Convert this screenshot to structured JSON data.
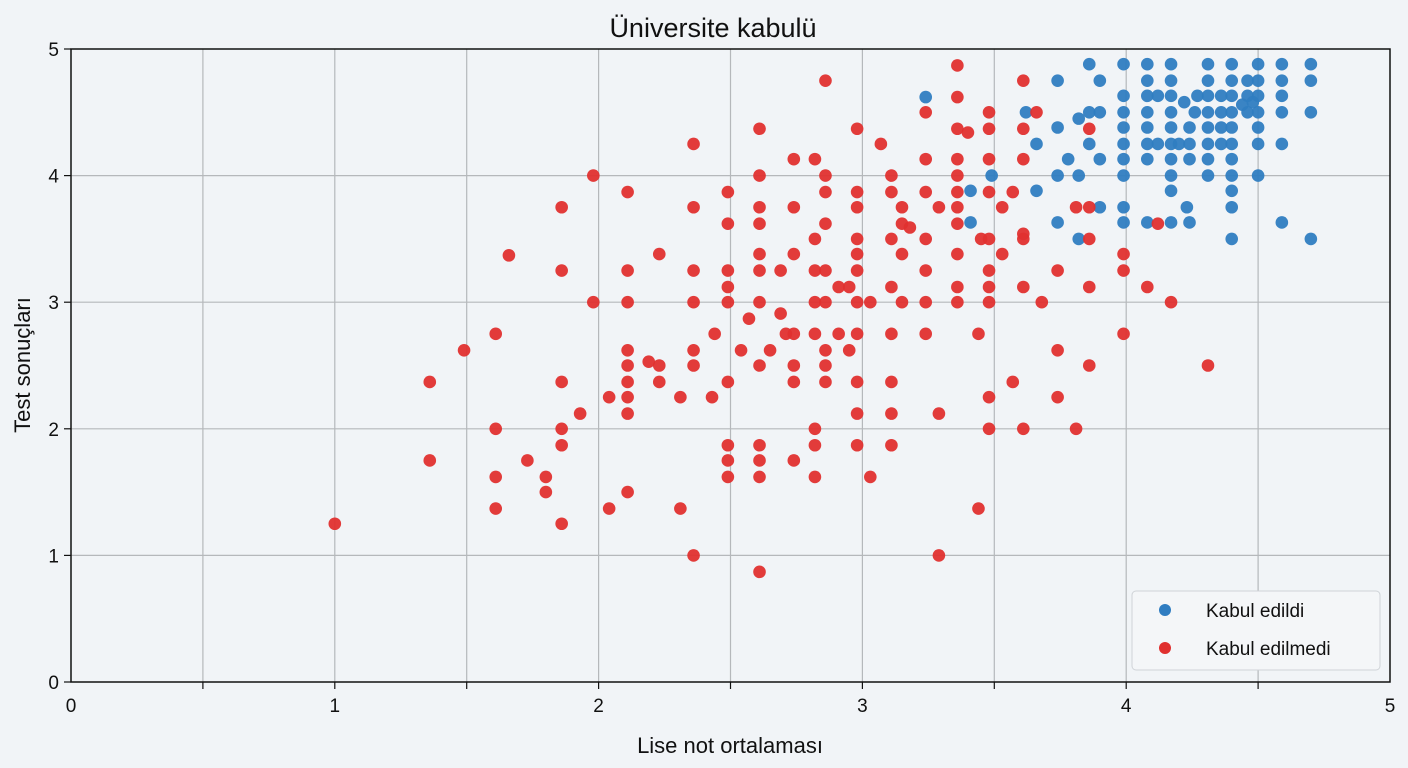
{
  "chart_data": {
    "type": "scatter",
    "title": "Üniversite kabulü",
    "xlabel": "Lise not ortalaması",
    "ylabel": "Test sonuçları",
    "xlim": [
      0,
      5
    ],
    "ylim": [
      0,
      5
    ],
    "xticks": [
      0,
      1,
      2,
      3,
      4,
      5
    ],
    "yticks": [
      0,
      1,
      2,
      3,
      4,
      5
    ],
    "grid": true,
    "legend_position": "bottom-right",
    "series": [
      {
        "name": "Kabul edildi",
        "color": "#2f7dc1",
        "points": [
          [
            3.24,
            4.62
          ],
          [
            3.41,
            3.88
          ],
          [
            3.41,
            3.63
          ],
          [
            3.49,
            4.0
          ],
          [
            3.62,
            4.5
          ],
          [
            3.66,
            4.25
          ],
          [
            3.66,
            3.88
          ],
          [
            3.74,
            4.75
          ],
          [
            3.74,
            4.38
          ],
          [
            3.74,
            4.0
          ],
          [
            3.74,
            3.63
          ],
          [
            3.78,
            4.13
          ],
          [
            3.82,
            4.45
          ],
          [
            3.82,
            4.0
          ],
          [
            3.82,
            3.5
          ],
          [
            3.86,
            4.88
          ],
          [
            3.86,
            4.5
          ],
          [
            3.86,
            4.25
          ],
          [
            3.9,
            4.75
          ],
          [
            3.9,
            4.5
          ],
          [
            3.9,
            4.13
          ],
          [
            3.9,
            3.75
          ],
          [
            3.99,
            4.88
          ],
          [
            3.99,
            4.63
          ],
          [
            3.99,
            4.5
          ],
          [
            3.99,
            4.38
          ],
          [
            3.99,
            4.25
          ],
          [
            3.99,
            4.13
          ],
          [
            3.99,
            4.0
          ],
          [
            3.99,
            3.75
          ],
          [
            3.99,
            3.63
          ],
          [
            4.08,
            4.88
          ],
          [
            4.08,
            4.75
          ],
          [
            4.08,
            4.63
          ],
          [
            4.08,
            4.5
          ],
          [
            4.08,
            4.38
          ],
          [
            4.08,
            4.25
          ],
          [
            4.08,
            4.13
          ],
          [
            4.08,
            3.63
          ],
          [
            4.12,
            4.63
          ],
          [
            4.12,
            4.25
          ],
          [
            4.17,
            4.88
          ],
          [
            4.17,
            4.75
          ],
          [
            4.17,
            4.63
          ],
          [
            4.17,
            4.5
          ],
          [
            4.17,
            4.38
          ],
          [
            4.17,
            4.25
          ],
          [
            4.17,
            4.13
          ],
          [
            4.17,
            4.0
          ],
          [
            4.17,
            3.88
          ],
          [
            4.17,
            3.63
          ],
          [
            4.2,
            4.25
          ],
          [
            4.22,
            4.58
          ],
          [
            4.23,
            3.75
          ],
          [
            4.24,
            4.38
          ],
          [
            4.24,
            4.25
          ],
          [
            4.24,
            4.13
          ],
          [
            4.24,
            3.63
          ],
          [
            4.26,
            4.5
          ],
          [
            4.27,
            4.63
          ],
          [
            4.31,
            4.88
          ],
          [
            4.31,
            4.75
          ],
          [
            4.31,
            4.63
          ],
          [
            4.31,
            4.5
          ],
          [
            4.31,
            4.38
          ],
          [
            4.31,
            4.25
          ],
          [
            4.31,
            4.13
          ],
          [
            4.31,
            4.0
          ],
          [
            4.36,
            4.63
          ],
          [
            4.36,
            4.5
          ],
          [
            4.36,
            4.38
          ],
          [
            4.36,
            4.25
          ],
          [
            4.4,
            4.88
          ],
          [
            4.4,
            4.75
          ],
          [
            4.4,
            4.63
          ],
          [
            4.4,
            4.5
          ],
          [
            4.4,
            4.38
          ],
          [
            4.4,
            4.25
          ],
          [
            4.4,
            4.13
          ],
          [
            4.4,
            4.0
          ],
          [
            4.4,
            3.88
          ],
          [
            4.4,
            3.75
          ],
          [
            4.4,
            3.5
          ],
          [
            4.46,
            4.75
          ],
          [
            4.46,
            4.63
          ],
          [
            4.46,
            4.5
          ],
          [
            4.44,
            4.56
          ],
          [
            4.48,
            4.58
          ],
          [
            4.5,
            4.88
          ],
          [
            4.5,
            4.75
          ],
          [
            4.5,
            4.63
          ],
          [
            4.5,
            4.5
          ],
          [
            4.5,
            4.38
          ],
          [
            4.5,
            4.25
          ],
          [
            4.5,
            4.0
          ],
          [
            4.59,
            4.88
          ],
          [
            4.59,
            4.75
          ],
          [
            4.59,
            4.63
          ],
          [
            4.59,
            4.5
          ],
          [
            4.59,
            4.25
          ],
          [
            4.59,
            3.63
          ],
          [
            4.7,
            4.88
          ],
          [
            4.7,
            4.75
          ],
          [
            4.7,
            4.5
          ],
          [
            4.7,
            3.5
          ]
        ]
      },
      {
        "name": "Kabul edilmedi",
        "color": "#e0302f",
        "points": [
          [
            1.0,
            1.25
          ],
          [
            1.36,
            2.37
          ],
          [
            1.36,
            1.75
          ],
          [
            1.49,
            2.62
          ],
          [
            1.61,
            2.75
          ],
          [
            1.61,
            2.0
          ],
          [
            1.61,
            1.62
          ],
          [
            1.61,
            1.37
          ],
          [
            1.66,
            3.37
          ],
          [
            1.73,
            1.75
          ],
          [
            1.8,
            1.62
          ],
          [
            1.8,
            1.5
          ],
          [
            1.86,
            3.75
          ],
          [
            1.86,
            3.25
          ],
          [
            1.86,
            2.37
          ],
          [
            1.86,
            2.0
          ],
          [
            1.86,
            1.87
          ],
          [
            1.86,
            1.25
          ],
          [
            1.93,
            2.12
          ],
          [
            1.98,
            4.0
          ],
          [
            1.98,
            3.0
          ],
          [
            2.04,
            2.25
          ],
          [
            2.04,
            1.37
          ],
          [
            2.11,
            3.87
          ],
          [
            2.11,
            3.25
          ],
          [
            2.11,
            3.0
          ],
          [
            2.11,
            2.62
          ],
          [
            2.11,
            2.5
          ],
          [
            2.11,
            2.37
          ],
          [
            2.11,
            2.25
          ],
          [
            2.11,
            2.12
          ],
          [
            2.11,
            1.5
          ],
          [
            2.19,
            2.53
          ],
          [
            2.23,
            3.38
          ],
          [
            2.23,
            2.5
          ],
          [
            2.23,
            2.37
          ],
          [
            2.31,
            2.25
          ],
          [
            2.31,
            1.37
          ],
          [
            2.36,
            4.25
          ],
          [
            2.36,
            3.75
          ],
          [
            2.36,
            3.25
          ],
          [
            2.36,
            3.0
          ],
          [
            2.36,
            2.62
          ],
          [
            2.36,
            2.5
          ],
          [
            2.36,
            1.0
          ],
          [
            2.43,
            2.25
          ],
          [
            2.44,
            2.75
          ],
          [
            2.49,
            3.87
          ],
          [
            2.49,
            3.62
          ],
          [
            2.49,
            3.25
          ],
          [
            2.49,
            3.12
          ],
          [
            2.49,
            3.0
          ],
          [
            2.49,
            2.37
          ],
          [
            2.49,
            1.87
          ],
          [
            2.49,
            1.75
          ],
          [
            2.49,
            1.62
          ],
          [
            2.54,
            2.62
          ],
          [
            2.57,
            2.87
          ],
          [
            2.61,
            4.37
          ],
          [
            2.61,
            4.0
          ],
          [
            2.61,
            3.75
          ],
          [
            2.61,
            3.62
          ],
          [
            2.61,
            3.38
          ],
          [
            2.61,
            3.25
          ],
          [
            2.61,
            3.0
          ],
          [
            2.61,
            2.5
          ],
          [
            2.61,
            1.87
          ],
          [
            2.61,
            1.75
          ],
          [
            2.61,
            1.62
          ],
          [
            2.61,
            0.87
          ],
          [
            2.65,
            2.62
          ],
          [
            2.69,
            3.25
          ],
          [
            2.69,
            2.91
          ],
          [
            2.71,
            2.75
          ],
          [
            2.74,
            4.13
          ],
          [
            2.74,
            3.75
          ],
          [
            2.74,
            3.38
          ],
          [
            2.74,
            2.75
          ],
          [
            2.74,
            2.5
          ],
          [
            2.74,
            2.37
          ],
          [
            2.74,
            1.75
          ],
          [
            2.82,
            4.13
          ],
          [
            2.82,
            3.5
          ],
          [
            2.82,
            3.25
          ],
          [
            2.82,
            3.0
          ],
          [
            2.82,
            2.75
          ],
          [
            2.82,
            2.0
          ],
          [
            2.82,
            1.87
          ],
          [
            2.82,
            1.62
          ],
          [
            2.86,
            4.75
          ],
          [
            2.86,
            4.0
          ],
          [
            2.86,
            3.87
          ],
          [
            2.86,
            3.62
          ],
          [
            2.86,
            3.25
          ],
          [
            2.86,
            3.0
          ],
          [
            2.86,
            2.62
          ],
          [
            2.86,
            2.5
          ],
          [
            2.86,
            2.37
          ],
          [
            2.91,
            3.12
          ],
          [
            2.91,
            2.75
          ],
          [
            2.95,
            3.12
          ],
          [
            2.95,
            2.62
          ],
          [
            2.98,
            4.37
          ],
          [
            2.98,
            3.87
          ],
          [
            2.98,
            3.75
          ],
          [
            2.98,
            3.5
          ],
          [
            2.98,
            3.38
          ],
          [
            2.98,
            3.25
          ],
          [
            2.98,
            3.0
          ],
          [
            2.98,
            2.75
          ],
          [
            2.98,
            2.37
          ],
          [
            2.98,
            2.12
          ],
          [
            2.98,
            1.87
          ],
          [
            3.03,
            3.0
          ],
          [
            3.03,
            1.62
          ],
          [
            3.07,
            4.25
          ],
          [
            3.11,
            4.0
          ],
          [
            3.11,
            3.87
          ],
          [
            3.11,
            3.5
          ],
          [
            3.11,
            3.12
          ],
          [
            3.11,
            2.75
          ],
          [
            3.11,
            2.37
          ],
          [
            3.11,
            2.12
          ],
          [
            3.11,
            1.87
          ],
          [
            3.15,
            3.75
          ],
          [
            3.15,
            3.62
          ],
          [
            3.15,
            3.38
          ],
          [
            3.15,
            3.0
          ],
          [
            3.18,
            3.59
          ],
          [
            3.24,
            4.5
          ],
          [
            3.24,
            4.13
          ],
          [
            3.24,
            3.87
          ],
          [
            3.24,
            3.5
          ],
          [
            3.24,
            3.25
          ],
          [
            3.24,
            3.0
          ],
          [
            3.24,
            2.75
          ],
          [
            3.29,
            3.75
          ],
          [
            3.29,
            2.12
          ],
          [
            3.29,
            1.0
          ],
          [
            3.36,
            4.87
          ],
          [
            3.36,
            4.62
          ],
          [
            3.36,
            4.37
          ],
          [
            3.36,
            4.13
          ],
          [
            3.36,
            4.0
          ],
          [
            3.36,
            3.87
          ],
          [
            3.36,
            3.75
          ],
          [
            3.36,
            3.62
          ],
          [
            3.36,
            3.38
          ],
          [
            3.36,
            3.12
          ],
          [
            3.36,
            3.0
          ],
          [
            3.4,
            4.34
          ],
          [
            3.44,
            2.75
          ],
          [
            3.44,
            1.37
          ],
          [
            3.45,
            3.5
          ],
          [
            3.48,
            4.5
          ],
          [
            3.48,
            4.37
          ],
          [
            3.48,
            4.13
          ],
          [
            3.48,
            3.87
          ],
          [
            3.48,
            3.5
          ],
          [
            3.48,
            3.25
          ],
          [
            3.48,
            3.12
          ],
          [
            3.48,
            3.0
          ],
          [
            3.48,
            2.25
          ],
          [
            3.48,
            2.0
          ],
          [
            3.53,
            3.75
          ],
          [
            3.53,
            3.38
          ],
          [
            3.57,
            2.37
          ],
          [
            3.57,
            3.87
          ],
          [
            3.61,
            4.75
          ],
          [
            3.61,
            4.37
          ],
          [
            3.61,
            4.13
          ],
          [
            3.61,
            3.5
          ],
          [
            3.61,
            3.54
          ],
          [
            3.61,
            3.12
          ],
          [
            3.61,
            2.0
          ],
          [
            3.66,
            4.5
          ],
          [
            3.68,
            3.0
          ],
          [
            3.74,
            3.25
          ],
          [
            3.74,
            2.62
          ],
          [
            3.74,
            2.25
          ],
          [
            3.81,
            2.0
          ],
          [
            3.81,
            3.75
          ],
          [
            3.86,
            4.37
          ],
          [
            3.86,
            3.75
          ],
          [
            3.86,
            3.5
          ],
          [
            3.86,
            3.12
          ],
          [
            3.86,
            2.5
          ],
          [
            3.99,
            3.38
          ],
          [
            3.99,
            3.25
          ],
          [
            3.99,
            2.75
          ],
          [
            4.08,
            3.12
          ],
          [
            4.12,
            3.62
          ],
          [
            4.17,
            3.0
          ],
          [
            4.31,
            2.5
          ]
        ]
      }
    ]
  }
}
